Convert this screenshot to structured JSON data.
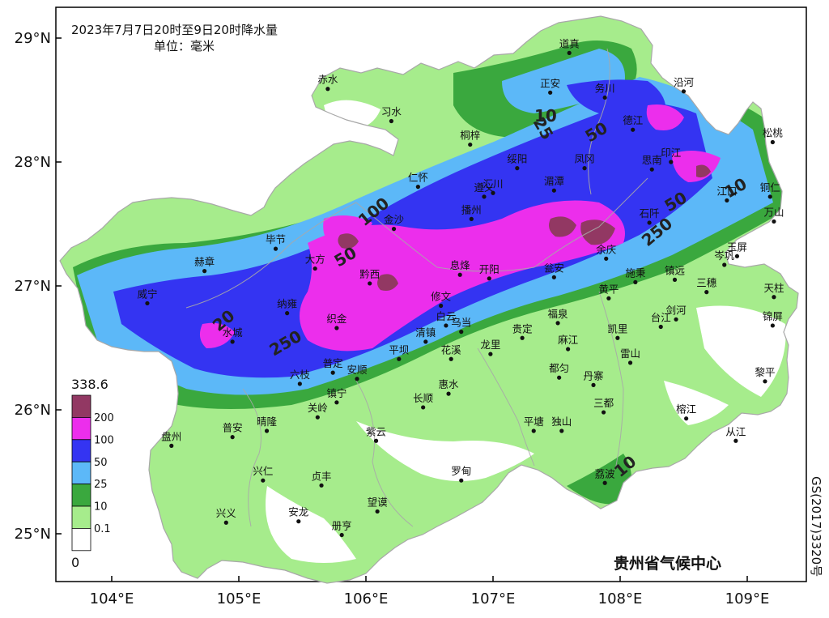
{
  "title_line1": "2023年7月7日20时至9日20时降水量",
  "title_line2": "单位：毫米",
  "credit": "贵州省气候中心",
  "map_id": "GS(2017)3320号",
  "colors": {
    "c0": "#ffffff",
    "c01": "#a6ec8c",
    "c10": "#3aa83e",
    "c25": "#5cb8f8",
    "c50": "#3434f2",
    "c100": "#ec2eec",
    "c200": "#923863",
    "border": "#a8a8a8",
    "frame": "#000000"
  },
  "legend": {
    "max": "338.6",
    "min": "0",
    "levels": [
      "200",
      "100",
      "50",
      "25",
      "10",
      "0.1"
    ]
  },
  "axes": {
    "lat": [
      "29°N",
      "28°N",
      "27°N",
      "26°N",
      "25°N"
    ],
    "lon": [
      "104°E",
      "105°E",
      "106°E",
      "107°E",
      "108°E",
      "109°E"
    ]
  },
  "contour_labels": [
    "25",
    "50",
    "10",
    "50",
    "100",
    "50",
    "250",
    "20",
    "10",
    "250",
    "10"
  ],
  "cities": [
    {
      "name": "道真",
      "lon": 107.6,
      "lat": 28.88
    },
    {
      "name": "赤水",
      "lon": 105.7,
      "lat": 28.59
    },
    {
      "name": "正安",
      "lon": 107.45,
      "lat": 28.56
    },
    {
      "name": "务川",
      "lon": 107.88,
      "lat": 28.52
    },
    {
      "name": "沿河",
      "lon": 108.5,
      "lat": 28.57
    },
    {
      "name": "习水",
      "lon": 106.2,
      "lat": 28.33
    },
    {
      "name": "德江",
      "lon": 108.1,
      "lat": 28.26
    },
    {
      "name": "桐梓",
      "lon": 106.82,
      "lat": 28.14
    },
    {
      "name": "印江",
      "lon": 108.4,
      "lat": 28.0
    },
    {
      "name": "松桃",
      "lon": 109.2,
      "lat": 28.16
    },
    {
      "name": "凤冈",
      "lon": 107.72,
      "lat": 27.95
    },
    {
      "name": "思南",
      "lon": 108.25,
      "lat": 27.94
    },
    {
      "name": "绥阳",
      "lon": 107.19,
      "lat": 27.95
    },
    {
      "name": "仁怀",
      "lon": 106.41,
      "lat": 27.8
    },
    {
      "name": "遵义",
      "lon": 106.93,
      "lat": 27.72
    },
    {
      "name": "汇川",
      "lon": 107.0,
      "lat": 27.75
    },
    {
      "name": "湄潭",
      "lon": 107.48,
      "lat": 27.77
    },
    {
      "name": "江口",
      "lon": 108.84,
      "lat": 27.69
    },
    {
      "name": "铜仁",
      "lon": 109.18,
      "lat": 27.72
    },
    {
      "name": "播州",
      "lon": 106.83,
      "lat": 27.54
    },
    {
      "name": "金沙",
      "lon": 106.22,
      "lat": 27.46
    },
    {
      "name": "石阡",
      "lon": 108.23,
      "lat": 27.51
    },
    {
      "name": "万山",
      "lon": 109.21,
      "lat": 27.52
    },
    {
      "name": "毕节",
      "lon": 105.29,
      "lat": 27.3
    },
    {
      "name": "余庆",
      "lon": 107.89,
      "lat": 27.22
    },
    {
      "name": "岑巩",
      "lon": 108.82,
      "lat": 27.17
    },
    {
      "name": "玉屏",
      "lon": 108.92,
      "lat": 27.24
    },
    {
      "name": "赫章",
      "lon": 104.73,
      "lat": 27.12
    },
    {
      "name": "大方",
      "lon": 105.6,
      "lat": 27.14
    },
    {
      "name": "息烽",
      "lon": 106.74,
      "lat": 27.09
    },
    {
      "name": "开阳",
      "lon": 106.97,
      "lat": 27.06
    },
    {
      "name": "瓮安",
      "lon": 107.48,
      "lat": 27.07
    },
    {
      "name": "施秉",
      "lon": 108.12,
      "lat": 27.03
    },
    {
      "name": "镇远",
      "lon": 108.43,
      "lat": 27.05
    },
    {
      "name": "黔西",
      "lon": 106.03,
      "lat": 27.02
    },
    {
      "name": "三穗",
      "lon": 108.68,
      "lat": 26.95
    },
    {
      "name": "天柱",
      "lon": 109.21,
      "lat": 26.91
    },
    {
      "name": "威宁",
      "lon": 104.28,
      "lat": 26.86
    },
    {
      "name": "黄平",
      "lon": 107.91,
      "lat": 26.9
    },
    {
      "name": "修文",
      "lon": 106.59,
      "lat": 26.84
    },
    {
      "name": "纳雍",
      "lon": 105.38,
      "lat": 26.78
    },
    {
      "name": "台江",
      "lon": 108.32,
      "lat": 26.67
    },
    {
      "name": "剑河",
      "lon": 108.44,
      "lat": 26.73
    },
    {
      "name": "锦屏",
      "lon": 109.2,
      "lat": 26.68
    },
    {
      "name": "织金",
      "lon": 105.77,
      "lat": 26.66
    },
    {
      "name": "福泉",
      "lon": 107.51,
      "lat": 26.7
    },
    {
      "name": "白云",
      "lon": 106.63,
      "lat": 26.68
    },
    {
      "name": "乌当",
      "lon": 106.75,
      "lat": 26.63
    },
    {
      "name": "凯里",
      "lon": 107.98,
      "lat": 26.58
    },
    {
      "name": "水城",
      "lon": 104.95,
      "lat": 26.55
    },
    {
      "name": "清镇",
      "lon": 106.47,
      "lat": 26.55
    },
    {
      "name": "贵定",
      "lon": 107.23,
      "lat": 26.58
    },
    {
      "name": "麻江",
      "lon": 107.59,
      "lat": 26.49
    },
    {
      "name": "龙里",
      "lon": 106.98,
      "lat": 26.45
    },
    {
      "name": "花溪",
      "lon": 106.67,
      "lat": 26.41
    },
    {
      "name": "雷山",
      "lon": 108.08,
      "lat": 26.38
    },
    {
      "name": "平坝",
      "lon": 106.26,
      "lat": 26.41
    },
    {
      "name": "都匀",
      "lon": 107.52,
      "lat": 26.26
    },
    {
      "name": "普定",
      "lon": 105.74,
      "lat": 26.3
    },
    {
      "name": "安顺",
      "lon": 105.93,
      "lat": 26.25
    },
    {
      "name": "黎平",
      "lon": 109.14,
      "lat": 26.23
    },
    {
      "name": "六枝",
      "lon": 105.48,
      "lat": 26.21
    },
    {
      "name": "丹寨",
      "lon": 107.79,
      "lat": 26.2
    },
    {
      "name": "惠水",
      "lon": 106.65,
      "lat": 26.13
    },
    {
      "name": "镇宁",
      "lon": 105.77,
      "lat": 26.06
    },
    {
      "name": "长顺",
      "lon": 106.45,
      "lat": 26.02
    },
    {
      "name": "三都",
      "lon": 107.87,
      "lat": 25.98
    },
    {
      "name": "关岭",
      "lon": 105.62,
      "lat": 25.94
    },
    {
      "name": "榕江",
      "lon": 108.52,
      "lat": 25.93
    },
    {
      "name": "平塘",
      "lon": 107.32,
      "lat": 25.83
    },
    {
      "name": "独山",
      "lon": 107.54,
      "lat": 25.83
    },
    {
      "name": "紫云",
      "lon": 106.08,
      "lat": 25.75
    },
    {
      "name": "从江",
      "lon": 108.91,
      "lat": 25.75
    },
    {
      "name": "普安",
      "lon": 104.95,
      "lat": 25.78
    },
    {
      "name": "晴隆",
      "lon": 105.22,
      "lat": 25.83
    },
    {
      "name": "盘州",
      "lon": 104.47,
      "lat": 25.71
    },
    {
      "name": "兴仁",
      "lon": 105.19,
      "lat": 25.43
    },
    {
      "name": "贞丰",
      "lon": 105.65,
      "lat": 25.39
    },
    {
      "name": "罗甸",
      "lon": 106.75,
      "lat": 25.43
    },
    {
      "name": "荔波",
      "lon": 107.88,
      "lat": 25.41
    },
    {
      "name": "望谟",
      "lon": 106.09,
      "lat": 25.18
    },
    {
      "name": "兴义",
      "lon": 104.9,
      "lat": 25.09
    },
    {
      "name": "安龙",
      "lon": 105.47,
      "lat": 25.1
    },
    {
      "name": "册亨",
      "lon": 105.81,
      "lat": 24.99
    }
  ]
}
